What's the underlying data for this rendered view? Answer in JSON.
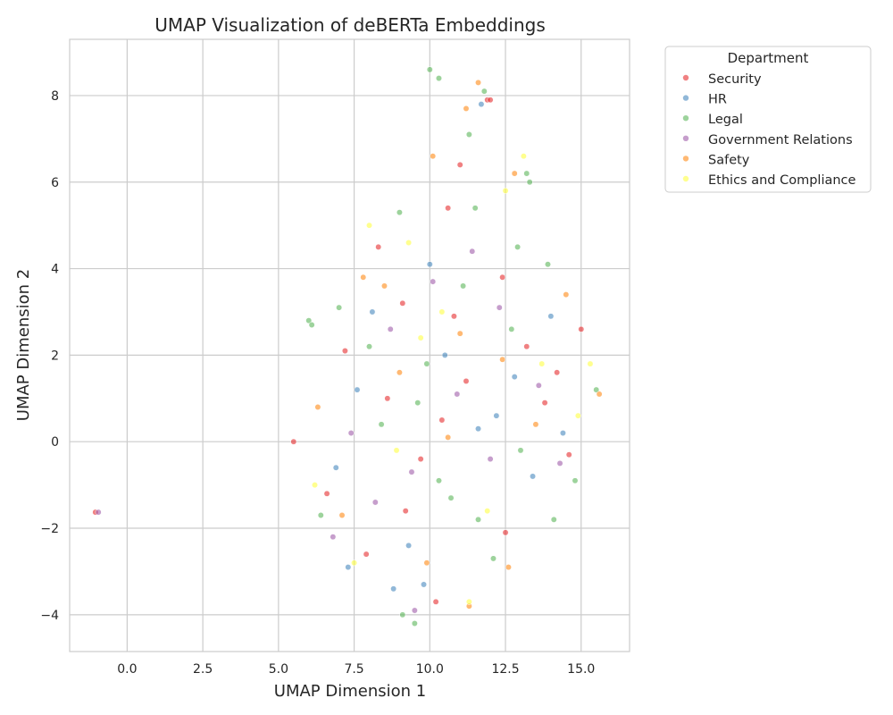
{
  "chart_data": {
    "type": "scatter",
    "title": "UMAP Visualization of deBERTa Embeddings",
    "xlabel": "UMAP Dimension 1",
    "ylabel": "UMAP Dimension 2",
    "xlim": [
      -1.9,
      16.6
    ],
    "ylim": [
      -4.85,
      9.3
    ],
    "x_ticks": [
      0.0,
      2.5,
      5.0,
      7.5,
      10.0,
      12.5,
      15.0
    ],
    "x_tick_labels": [
      "0.0",
      "2.5",
      "5.0",
      "7.5",
      "10.0",
      "12.5",
      "15.0"
    ],
    "y_ticks": [
      -4,
      -2,
      0,
      2,
      4,
      6,
      8
    ],
    "y_tick_labels": [
      "−4",
      "−2",
      "0",
      "2",
      "4",
      "6",
      "8"
    ],
    "grid": true,
    "legend": {
      "title": "Department",
      "placement": "outside-top-right",
      "entries": [
        {
          "name": "Security",
          "color": "#e41a1c"
        },
        {
          "name": "HR",
          "color": "#377eb8"
        },
        {
          "name": "Legal",
          "color": "#4daf4a"
        },
        {
          "name": "Government Relations",
          "color": "#984ea3"
        },
        {
          "name": "Safety",
          "color": "#ff7f00"
        },
        {
          "name": "Ethics and Compliance",
          "color": "#ffff33"
        }
      ]
    },
    "point_opacity": 0.55,
    "series": [
      {
        "name": "Security",
        "color": "#e41a1c",
        "points": [
          [
            7.2,
            2.1
          ],
          [
            9.1,
            3.2
          ],
          [
            10.4,
            0.5
          ],
          [
            6.6,
            -1.2
          ],
          [
            8.3,
            4.5
          ],
          [
            12.5,
            -2.1
          ],
          [
            11.2,
            1.4
          ],
          [
            13.8,
            0.9
          ],
          [
            7.9,
            -2.6
          ],
          [
            9.7,
            -0.4
          ],
          [
            10.8,
            2.9
          ],
          [
            8.6,
            1.0
          ],
          [
            11.9,
            7.9
          ],
          [
            12.0,
            7.9
          ],
          [
            10.6,
            5.4
          ],
          [
            15.0,
            2.6
          ],
          [
            14.6,
            -0.3
          ],
          [
            5.5,
            0.0
          ],
          [
            -1.05,
            -1.63
          ],
          [
            12.4,
            3.8
          ],
          [
            9.2,
            -1.6
          ],
          [
            13.2,
            2.2
          ],
          [
            10.2,
            -3.7
          ],
          [
            11.0,
            6.4
          ],
          [
            14.2,
            1.6
          ]
        ]
      },
      {
        "name": "HR",
        "color": "#377eb8",
        "points": [
          [
            7.6,
            1.2
          ],
          [
            9.3,
            -2.4
          ],
          [
            11.6,
            0.3
          ],
          [
            8.1,
            3.0
          ],
          [
            12.8,
            1.5
          ],
          [
            10.0,
            4.1
          ],
          [
            6.9,
            -0.6
          ],
          [
            13.4,
            -0.8
          ],
          [
            9.8,
            -3.3
          ],
          [
            14.0,
            2.9
          ],
          [
            11.7,
            7.8
          ],
          [
            8.8,
            -3.4
          ],
          [
            10.5,
            2.0
          ],
          [
            7.3,
            -2.9
          ],
          [
            12.2,
            0.6
          ],
          [
            14.4,
            0.2
          ]
        ]
      },
      {
        "name": "Legal",
        "color": "#4daf4a",
        "points": [
          [
            10.0,
            8.6
          ],
          [
            10.3,
            8.4
          ],
          [
            11.8,
            8.1
          ],
          [
            11.3,
            7.1
          ],
          [
            13.2,
            6.2
          ],
          [
            13.3,
            6.0
          ],
          [
            6.0,
            2.8
          ],
          [
            6.1,
            2.7
          ],
          [
            9.0,
            5.3
          ],
          [
            9.5,
            -4.2
          ],
          [
            9.1,
            -4.0
          ],
          [
            11.6,
            -1.8
          ],
          [
            14.1,
            -1.8
          ],
          [
            15.5,
            1.2
          ],
          [
            8.4,
            0.4
          ],
          [
            9.9,
            1.8
          ],
          [
            12.7,
            2.6
          ],
          [
            7.0,
            3.1
          ],
          [
            10.7,
            -1.3
          ],
          [
            13.9,
            4.1
          ],
          [
            11.5,
            5.4
          ],
          [
            12.1,
            -2.7
          ],
          [
            6.4,
            -1.7
          ],
          [
            14.8,
            -0.9
          ],
          [
            8.0,
            2.2
          ],
          [
            11.1,
            3.6
          ],
          [
            9.6,
            0.9
          ],
          [
            13.0,
            -0.2
          ],
          [
            12.9,
            4.5
          ],
          [
            10.3,
            -0.9
          ]
        ]
      },
      {
        "name": "Government Relations",
        "color": "#984ea3",
        "points": [
          [
            8.7,
            2.6
          ],
          [
            10.9,
            1.1
          ],
          [
            7.4,
            0.2
          ],
          [
            12.3,
            3.1
          ],
          [
            9.4,
            -0.7
          ],
          [
            13.6,
            1.3
          ],
          [
            11.4,
            4.4
          ],
          [
            6.8,
            -2.2
          ],
          [
            10.1,
            3.7
          ],
          [
            14.3,
            -0.5
          ],
          [
            -0.95,
            -1.63
          ],
          [
            9.5,
            -3.9
          ],
          [
            12.0,
            -0.4
          ],
          [
            8.2,
            -1.4
          ]
        ]
      },
      {
        "name": "Safety",
        "color": "#ff7f00",
        "points": [
          [
            11.6,
            8.3
          ],
          [
            11.2,
            7.7
          ],
          [
            10.1,
            6.6
          ],
          [
            12.8,
            6.2
          ],
          [
            8.5,
            3.6
          ],
          [
            10.6,
            0.1
          ],
          [
            7.1,
            -1.7
          ],
          [
            12.6,
            -2.9
          ],
          [
            13.5,
            0.4
          ],
          [
            9.0,
            1.6
          ],
          [
            11.3,
            -3.8
          ],
          [
            14.5,
            3.4
          ],
          [
            15.6,
            1.1
          ],
          [
            7.8,
            3.8
          ],
          [
            12.4,
            1.9
          ],
          [
            9.9,
            -2.8
          ],
          [
            6.3,
            0.8
          ],
          [
            11.0,
            2.5
          ]
        ]
      },
      {
        "name": "Ethics and Compliance",
        "color": "#ffff33",
        "points": [
          [
            13.1,
            6.6
          ],
          [
            12.5,
            5.8
          ],
          [
            9.3,
            4.6
          ],
          [
            8.9,
            -0.2
          ],
          [
            11.9,
            -1.6
          ],
          [
            6.2,
            -1.0
          ],
          [
            10.4,
            3.0
          ],
          [
            13.7,
            1.8
          ],
          [
            7.5,
            -2.8
          ],
          [
            11.3,
            -3.7
          ],
          [
            14.9,
            0.6
          ],
          [
            9.7,
            2.4
          ],
          [
            15.3,
            1.8
          ],
          [
            8.0,
            5.0
          ]
        ]
      }
    ]
  }
}
